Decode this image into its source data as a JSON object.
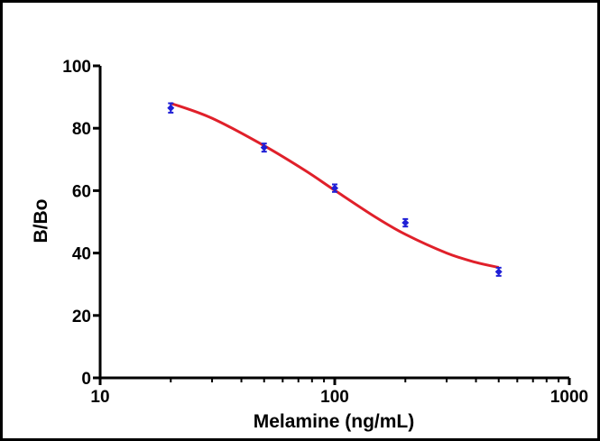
{
  "chart_data": {
    "type": "scatter",
    "title": "",
    "xlabel": "Melamine (ng/mL)",
    "ylabel": "B/Bo",
    "x_scale": "log",
    "xlim": [
      10,
      1000
    ],
    "ylim": [
      0,
      100
    ],
    "x_ticks": [
      10,
      100,
      1000
    ],
    "x_tick_labels": [
      "10",
      "100",
      "1000"
    ],
    "y_ticks": [
      0,
      20,
      40,
      60,
      80,
      100
    ],
    "y_tick_labels": [
      "0",
      "20",
      "40",
      "60",
      "80",
      "100"
    ],
    "grid": false,
    "legend": "none",
    "points": {
      "x": [
        20,
        50,
        100,
        200,
        500
      ],
      "y": [
        86.5,
        73.8,
        60.8,
        49.7,
        34.0
      ],
      "error": [
        1.5,
        1.3,
        1.2,
        1.2,
        1.3
      ],
      "color": "#1f1fd6"
    },
    "fit_curve": {
      "type": "4-parameter logistic",
      "x": [
        20,
        30,
        50,
        75,
        100,
        150,
        200,
        300,
        400,
        500
      ],
      "y": [
        88.0,
        83.2,
        74.4,
        66.4,
        60.1,
        51.4,
        46.0,
        40.0,
        37.0,
        35.4
      ],
      "color": "#e0202a"
    }
  }
}
